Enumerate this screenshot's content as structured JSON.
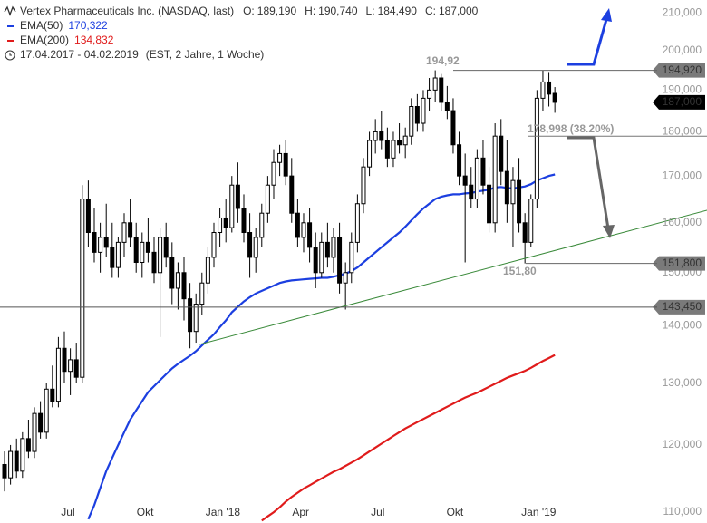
{
  "chart_data": {
    "type": "candlestick",
    "title": "Vertex Pharmaceuticals Inc. (NASDAQ, last)",
    "ohlc_header": [
      {
        "key": "O:",
        "value": 189.19,
        "label": "189,190"
      },
      {
        "key": "H:",
        "value": 190.74,
        "label": "190,740"
      },
      {
        "key": "L:",
        "value": 184.49,
        "label": "184,490"
      },
      {
        "key": "C:",
        "value": 187,
        "label": "187,000"
      }
    ],
    "period": "17.04.2017 - 04.02.2019",
    "period_note": "(EST, 2 Jahre, 1 Woche)",
    "log_scale": true,
    "grid": false,
    "ylim": [
      108.47,
      213.5
    ],
    "xlim": [
      -0.76,
      109.1
    ],
    "yticks": [
      {
        "value": 110,
        "label": "110,000"
      },
      {
        "value": 120,
        "label": "120,000"
      },
      {
        "value": 130,
        "label": "130,000"
      },
      {
        "value": 140,
        "label": "140,000"
      },
      {
        "value": 150,
        "label": "150,000"
      },
      {
        "value": 160,
        "label": "160,000"
      },
      {
        "value": 170,
        "label": "170,000"
      },
      {
        "value": 180,
        "label": "180,000"
      },
      {
        "value": 190,
        "label": "190,000"
      },
      {
        "value": 200,
        "label": "200,000"
      },
      {
        "value": 210,
        "label": "210,000"
      }
    ],
    "xticks": [
      {
        "value": 10.6,
        "label": "Jul"
      },
      {
        "value": 23.5,
        "label": "Okt"
      },
      {
        "value": 36.5,
        "label": "Jan '18"
      },
      {
        "value": 49.5,
        "label": "Apr"
      },
      {
        "value": 62.4,
        "label": "Jul"
      },
      {
        "value": 75.3,
        "label": "Okt"
      },
      {
        "value": 89.3,
        "label": "Jan '19"
      }
    ],
    "up_color": "#ffffff",
    "down_color": "#000000",
    "ohlc": [
      [
        117,
        119,
        113,
        115
      ],
      [
        115,
        120,
        114,
        119
      ],
      [
        119,
        121,
        115,
        116
      ],
      [
        116,
        122,
        115,
        121
      ],
      [
        121,
        124,
        118,
        119
      ],
      [
        119,
        126,
        118,
        125
      ],
      [
        125,
        127,
        121,
        122
      ],
      [
        122,
        130,
        121,
        129
      ],
      [
        129,
        133,
        126,
        127
      ],
      [
        127,
        138,
        126,
        136
      ],
      [
        136,
        139,
        130,
        132
      ],
      [
        132,
        136,
        128,
        134
      ],
      [
        134,
        137,
        130,
        131
      ],
      [
        131,
        168,
        130,
        165
      ],
      [
        165,
        169,
        155,
        158
      ],
      [
        158,
        163,
        152,
        154
      ],
      [
        154,
        160,
        150,
        157
      ],
      [
        157,
        164,
        153,
        155
      ],
      [
        155,
        160,
        149,
        151
      ],
      [
        151,
        157,
        149,
        156
      ],
      [
        156,
        162,
        153,
        160
      ],
      [
        160,
        165,
        155,
        157
      ],
      [
        157,
        160,
        150,
        152
      ],
      [
        152,
        158,
        149,
        156
      ],
      [
        156,
        161,
        152,
        154
      ],
      [
        154,
        157,
        148,
        150
      ],
      [
        150,
        159,
        138,
        157
      ],
      [
        157,
        160,
        151,
        153
      ],
      [
        153,
        156,
        144,
        147
      ],
      [
        147,
        152,
        143,
        150
      ],
      [
        150,
        153,
        141,
        145
      ],
      [
        145,
        148,
        136,
        139
      ],
      [
        139,
        146,
        137,
        144
      ],
      [
        144,
        150,
        142,
        148
      ],
      [
        148,
        155,
        146,
        153
      ],
      [
        153,
        160,
        151,
        158
      ],
      [
        158,
        163,
        155,
        161
      ],
      [
        161,
        165,
        156,
        159
      ],
      [
        159,
        170,
        158,
        168
      ],
      [
        168,
        173,
        160,
        163
      ],
      [
        163,
        166,
        156,
        158
      ],
      [
        158,
        162,
        149,
        153
      ],
      [
        153,
        159,
        150,
        157
      ],
      [
        157,
        164,
        155,
        162
      ],
      [
        162,
        170,
        160,
        168
      ],
      [
        168,
        176,
        165,
        173
      ],
      [
        173,
        177,
        170,
        175
      ],
      [
        175,
        178,
        168,
        170
      ],
      [
        170,
        174,
        160,
        162
      ],
      [
        162,
        165,
        155,
        157
      ],
      [
        157,
        162,
        154,
        160
      ],
      [
        160,
        163,
        152,
        155
      ],
      [
        155,
        158,
        147,
        150
      ],
      [
        150,
        158,
        149,
        156
      ],
      [
        156,
        160,
        151,
        153
      ],
      [
        153,
        159,
        150,
        157
      ],
      [
        157,
        160,
        146,
        148
      ],
      [
        148,
        152,
        143,
        150
      ],
      [
        150,
        158,
        148,
        156
      ],
      [
        156,
        166,
        154,
        164
      ],
      [
        164,
        174,
        162,
        172
      ],
      [
        172,
        180,
        170,
        178
      ],
      [
        178,
        183,
        175,
        180
      ],
      [
        180,
        185,
        176,
        178
      ],
      [
        178,
        181,
        172,
        174
      ],
      [
        174,
        180,
        172,
        178
      ],
      [
        178,
        182,
        175,
        177
      ],
      [
        177,
        181,
        174,
        179
      ],
      [
        179,
        188,
        177,
        186
      ],
      [
        186,
        189,
        180,
        182
      ],
      [
        182,
        190,
        180,
        188
      ],
      [
        188,
        193,
        185,
        190
      ],
      [
        190,
        194.92,
        187,
        193
      ],
      [
        193,
        194,
        185,
        187
      ],
      [
        187,
        191,
        183,
        185
      ],
      [
        185,
        188,
        175,
        177
      ],
      [
        177,
        180,
        168,
        170
      ],
      [
        170,
        175,
        152,
        168
      ],
      [
        168,
        172,
        163,
        165
      ],
      [
        165,
        176,
        163,
        174
      ],
      [
        174,
        178,
        166,
        168
      ],
      [
        168,
        172,
        158,
        160
      ],
      [
        160,
        182,
        158,
        179
      ],
      [
        179,
        183,
        168,
        171
      ],
      [
        171,
        178,
        160,
        164
      ],
      [
        164,
        172,
        155,
        169
      ],
      [
        169,
        174,
        158,
        160
      ],
      [
        160,
        162,
        151.8,
        156
      ],
      [
        156,
        166,
        155,
        165
      ],
      [
        165,
        190,
        163,
        188
      ],
      [
        188,
        194.9,
        185,
        192
      ],
      [
        192,
        194.5,
        186,
        189
      ],
      [
        189.19,
        190.74,
        184.49,
        187
      ]
    ],
    "series": [
      {
        "name": "EMA(50)",
        "color": "#1c3fe0",
        "legend_value": {
          "value": 170.322,
          "label": "170,322"
        },
        "values": [
          null,
          null,
          null,
          null,
          null,
          null,
          null,
          null,
          null,
          null,
          null,
          null,
          null,
          null,
          109,
          111,
          113.5,
          116,
          118,
          120,
          122,
          124,
          125.5,
          127,
          128.5,
          129.5,
          130.5,
          131.5,
          132.5,
          133.3,
          134,
          134.7,
          135.5,
          136.5,
          137.5,
          138.5,
          139.8,
          141,
          142.5,
          143.5,
          144.5,
          145.3,
          146,
          146.5,
          147,
          147.5,
          148,
          148.3,
          148.5,
          148.6,
          148.7,
          148.8,
          148.9,
          149,
          149,
          149.2,
          149.5,
          149.8,
          150.3,
          151,
          152,
          153,
          154,
          155,
          156,
          157,
          158,
          159.2,
          160.5,
          161.8,
          163,
          164,
          165,
          165.5,
          165.8,
          166,
          166,
          166.2,
          166.3,
          166.6,
          166.8,
          167,
          167.5,
          167.6,
          167.4,
          167.3,
          167.5,
          167.7,
          168.2,
          169,
          169.5,
          170,
          170.322
        ]
      },
      {
        "name": "EMA(200)",
        "color": "#e01b1b",
        "legend_value": {
          "value": 134.832,
          "label": "134,832"
        },
        "values": [
          null,
          null,
          null,
          null,
          null,
          null,
          null,
          null,
          null,
          null,
          null,
          null,
          null,
          null,
          null,
          null,
          null,
          null,
          null,
          null,
          null,
          null,
          null,
          null,
          null,
          null,
          null,
          null,
          null,
          null,
          null,
          null,
          null,
          null,
          null,
          null,
          null,
          null,
          null,
          null,
          null,
          null,
          null,
          108.8,
          109.4,
          110,
          110.7,
          111.5,
          112.2,
          112.8,
          113.4,
          113.9,
          114.4,
          114.9,
          115.4,
          115.9,
          116.3,
          116.8,
          117.3,
          117.8,
          118.4,
          119,
          119.6,
          120.2,
          120.8,
          121.4,
          122,
          122.6,
          123.1,
          123.6,
          124.1,
          124.6,
          125.1,
          125.6,
          126.1,
          126.6,
          127.1,
          127.6,
          128,
          128.4,
          128.9,
          129.4,
          129.9,
          130.4,
          130.9,
          131.3,
          131.7,
          132.1,
          132.6,
          133.2,
          133.8,
          134.3,
          134.832
        ]
      }
    ],
    "levels": [
      {
        "value": 194.92,
        "label": "194,920",
        "note": "194,92"
      },
      {
        "value": 178.998,
        "note": "178,998 (38.20%)"
      },
      {
        "value": 151.8,
        "label": "151,800",
        "note": "151,80"
      },
      {
        "value": 143.45,
        "label": "143,450"
      }
    ],
    "last_price": {
      "value": 187,
      "label": "187,000"
    }
  }
}
